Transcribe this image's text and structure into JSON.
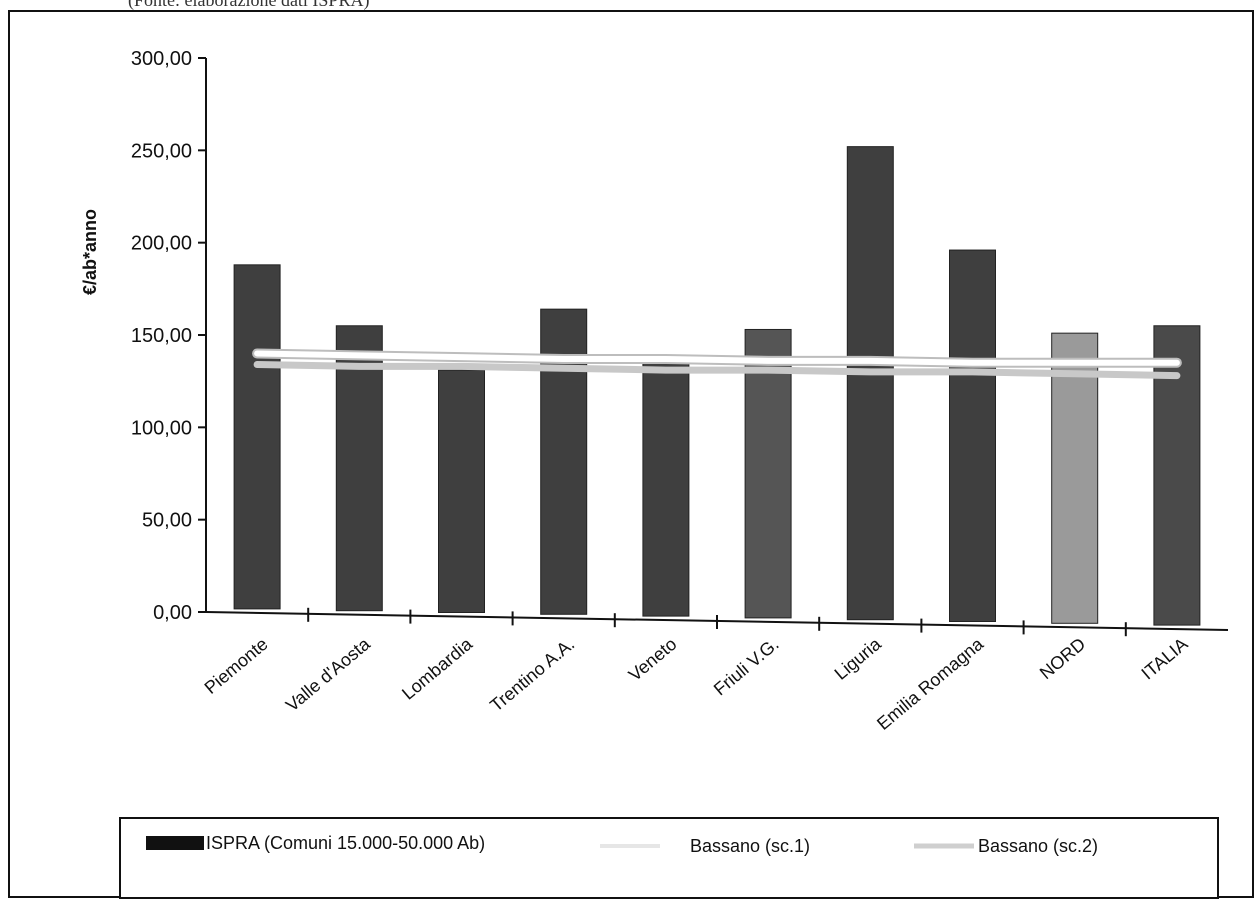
{
  "header": {
    "caption": "(Fonte: elaborazione dati ISPRA)"
  },
  "chart_data": {
    "type": "bar",
    "title": "",
    "xlabel": "",
    "ylabel": "€/ab*anno",
    "ylim": [
      0,
      300
    ],
    "yticks": [
      "0,00",
      "50,00",
      "100,00",
      "150,00",
      "200,00",
      "250,00",
      "300,00"
    ],
    "categories": [
      "Piemonte",
      "Valle d'Aosta",
      "Lombardia",
      "Trentino A.A.",
      "Veneto",
      "Friuli V.G.",
      "Liguria",
      "Emilia Romagna",
      "NORD",
      "ITALIA"
    ],
    "series": [
      {
        "name": "ISPRA (Comuni 15.000-50.000 Ab)",
        "kind": "bar",
        "color": "#3f3f3f",
        "values": [
          188,
          155,
          131,
          164,
          136,
          153,
          252,
          196,
          151,
          155
        ]
      },
      {
        "name": "Bassano (sc.1)",
        "kind": "line",
        "color": "#ffffff",
        "values": [
          140,
          139,
          138,
          137,
          137,
          136,
          136,
          135,
          135,
          135
        ]
      },
      {
        "name": "Bassano (sc.2)",
        "kind": "line",
        "color": "#c8c8c8",
        "values": [
          134,
          133,
          133,
          132,
          131,
          131,
          130,
          130,
          129,
          128
        ]
      }
    ],
    "bar_highlight_colors": {
      "5": "#555555",
      "8": "#9a9a9a",
      "9": "#4a4a4a"
    },
    "grid": false,
    "legend_position": "bottom"
  }
}
